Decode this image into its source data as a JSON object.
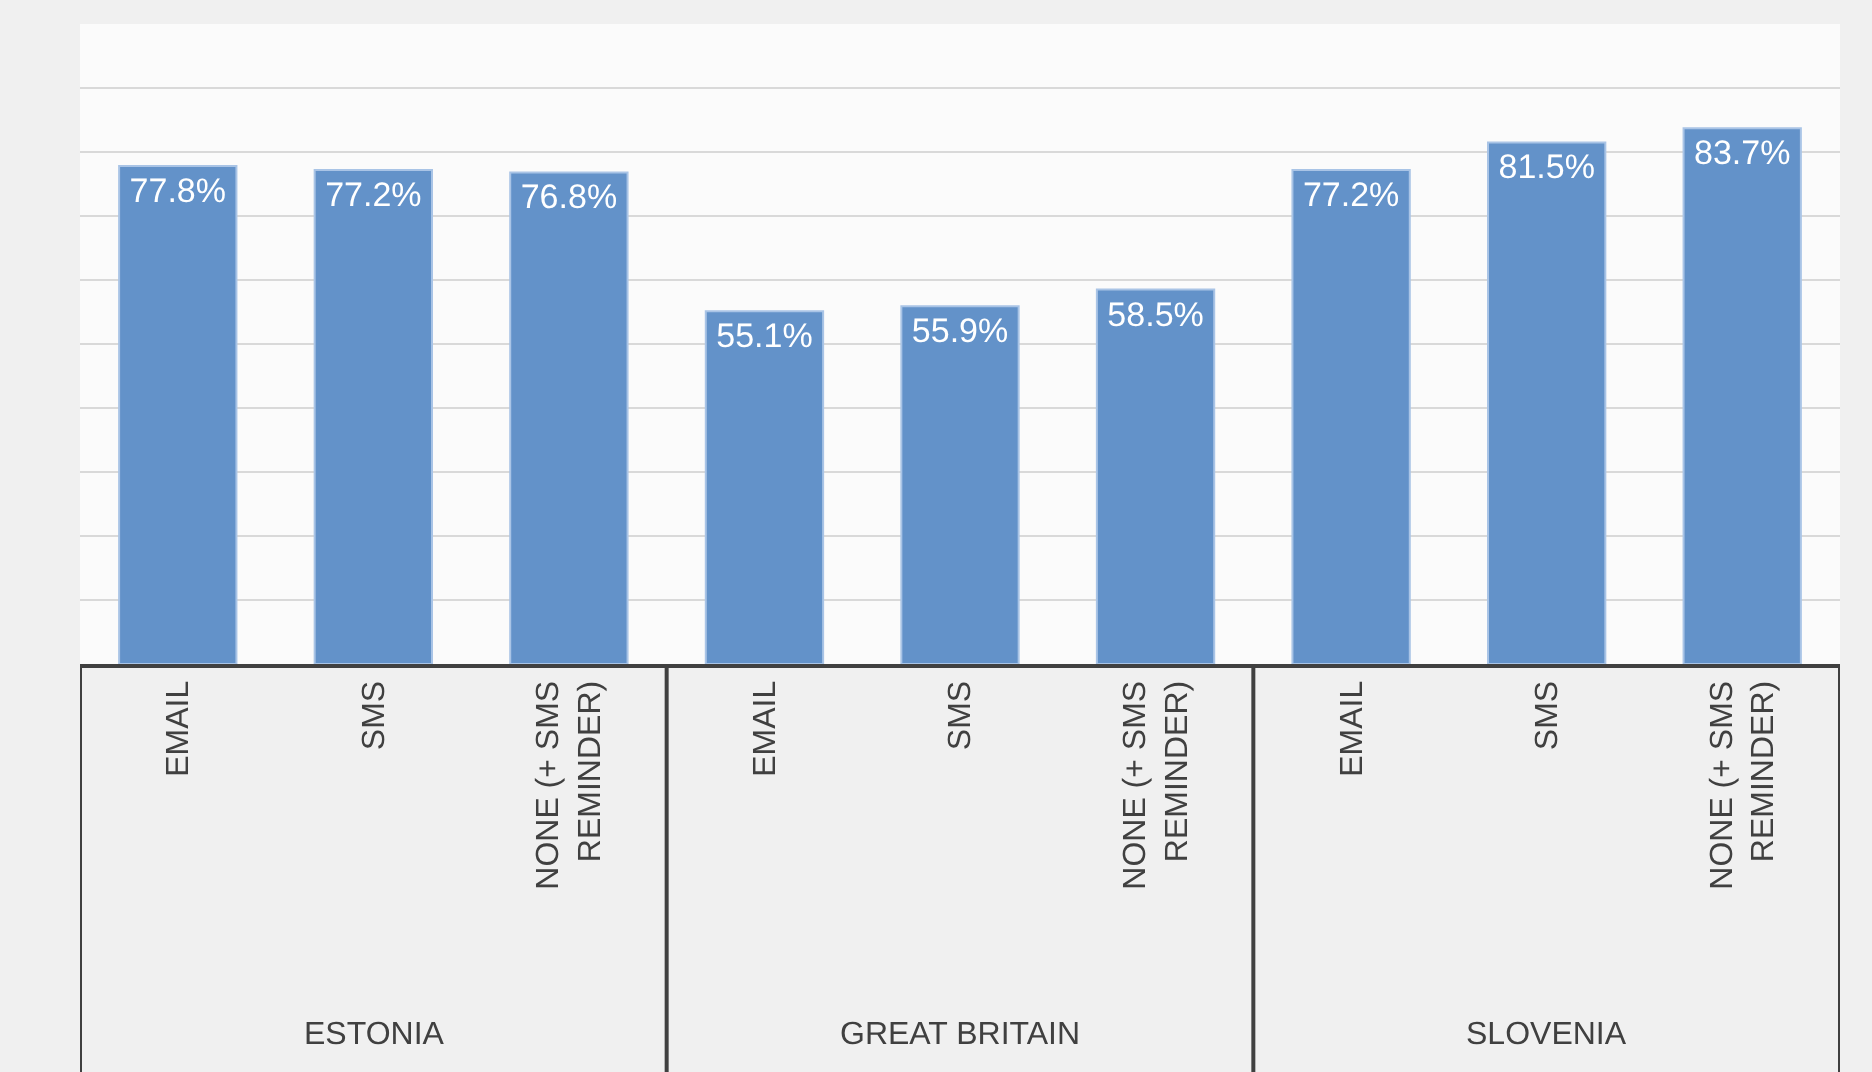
{
  "chart_data": {
    "type": "bar",
    "categories": [
      "EMAIL",
      "SMS",
      "NONE (+ SMS REMINDER)",
      "EMAIL",
      "SMS",
      "NONE (+ SMS REMINDER)",
      "EMAIL",
      "SMS",
      "NONE (+ SMS REMINDER)"
    ],
    "values": [
      77.8,
      77.2,
      76.8,
      55.1,
      55.9,
      58.5,
      77.2,
      81.5,
      83.7
    ],
    "value_labels": [
      "77.8%",
      "77.2%",
      "76.8%",
      "55.1%",
      "55.9%",
      "58.5%",
      "77.2%",
      "81.5%",
      "83.7%"
    ],
    "color": "#6392c9",
    "ylim": [
      0,
      100
    ],
    "yticks": [
      {
        "value": 0,
        "label": null
      },
      {
        "value": 10,
        "label": null
      },
      {
        "value": 20,
        "label": null
      },
      {
        "value": 30,
        "label": null
      },
      {
        "value": 40,
        "label": null
      },
      {
        "value": 50,
        "label": null
      },
      {
        "value": 60,
        "label": null
      },
      {
        "value": 70,
        "label": null
      },
      {
        "value": 80,
        "label": null
      },
      {
        "value": 90,
        "label": null
      },
      {
        "value": 100,
        "label": null
      }
    ],
    "grid": "y",
    "tick_labels": "x",
    "annotations": [
      "ESTONIA",
      "GREAT BRITAIN",
      "SLOVENIA"
    ]
  }
}
